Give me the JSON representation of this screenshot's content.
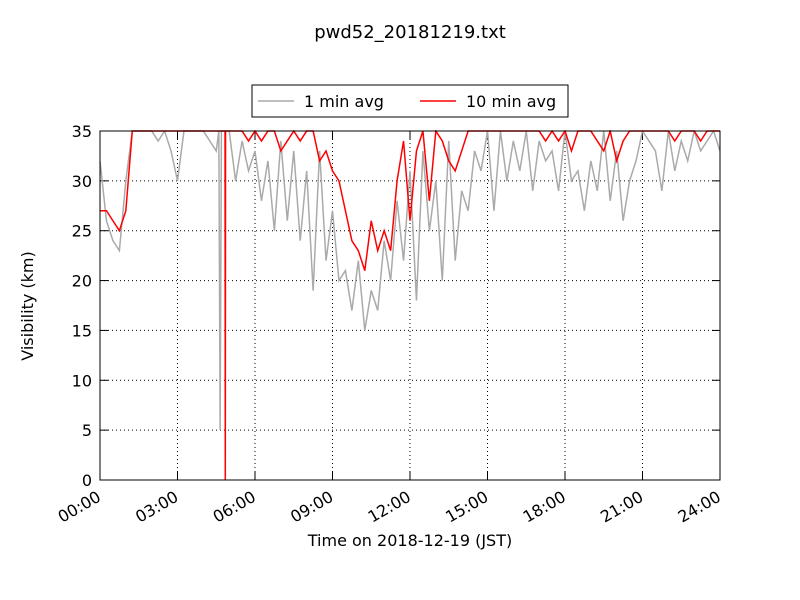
{
  "chart_data": {
    "type": "line",
    "title": "pwd52_20181219.txt",
    "x_label": "Time on 2018-12-19 (JST)",
    "y_label": "Visibility (km)",
    "x": [
      0,
      0.25,
      0.5,
      0.75,
      1,
      1.25,
      1.5,
      1.75,
      2,
      2.25,
      2.5,
      2.75,
      3,
      3.25,
      3.5,
      3.75,
      4,
      4.25,
      4.5,
      4.6,
      4.65,
      4.7,
      4.75,
      4.84,
      4.85,
      4.86,
      5,
      5.25,
      5.5,
      5.75,
      6,
      6.25,
      6.5,
      6.75,
      7,
      7.25,
      7.5,
      7.75,
      8,
      8.25,
      8.5,
      8.75,
      9,
      9.25,
      9.5,
      9.75,
      10,
      10.25,
      10.5,
      10.75,
      11,
      11.25,
      11.5,
      11.75,
      12,
      12.25,
      12.5,
      12.75,
      13,
      13.25,
      13.5,
      13.75,
      14,
      14.25,
      14.5,
      14.75,
      15,
      15.25,
      15.5,
      15.75,
      16,
      16.25,
      16.5,
      16.75,
      17,
      17.25,
      17.5,
      17.75,
      18,
      18.25,
      18.5,
      18.75,
      19,
      19.25,
      19.5,
      19.75,
      20,
      20.25,
      20.5,
      20.75,
      21,
      21.25,
      21.5,
      21.75,
      22,
      22.25,
      22.5,
      22.75,
      23,
      23.25,
      23.5,
      23.75,
      24
    ],
    "series": [
      {
        "name": "1 min avg",
        "color": "#aaaaaa",
        "values": [
          32,
          26,
          24,
          23,
          30,
          35,
          35,
          35,
          35,
          34,
          35,
          33,
          30,
          35,
          35,
          35,
          35,
          34,
          33,
          35,
          5,
          35,
          35,
          35,
          35,
          35,
          35,
          30,
          34,
          31,
          33,
          28,
          32,
          25,
          34,
          26,
          33,
          24,
          31,
          19,
          33,
          22,
          27,
          20,
          21,
          17,
          22,
          15,
          19,
          17,
          24,
          20,
          28,
          22,
          31,
          18,
          33,
          25,
          30,
          20,
          34,
          22,
          29,
          27,
          33,
          31,
          35,
          27,
          35,
          30,
          34,
          31,
          35,
          29,
          34,
          32,
          33,
          29,
          35,
          30,
          31,
          27,
          32,
          29,
          35,
          28,
          33,
          26,
          30,
          32,
          35,
          34,
          33,
          29,
          35,
          31,
          34,
          32,
          35,
          33,
          34,
          35,
          33
        ]
      },
      {
        "name": "10 min avg",
        "color": "#ff0000",
        "values": [
          27,
          27,
          26,
          25,
          27,
          35,
          35,
          35,
          35,
          35,
          35,
          35,
          35,
          35,
          35,
          35,
          35,
          35,
          35,
          35,
          35,
          35,
          35,
          35,
          0,
          35,
          35,
          35,
          35,
          34,
          35,
          34,
          35,
          35,
          33,
          34,
          35,
          34,
          35,
          35,
          32,
          33,
          31,
          30,
          27,
          24,
          23,
          21,
          26,
          23,
          25,
          23,
          30,
          34,
          26,
          33,
          35,
          28,
          35,
          34,
          32,
          31,
          33,
          35,
          35,
          35,
          35,
          35,
          35,
          35,
          35,
          35,
          35,
          35,
          35,
          34,
          35,
          34,
          35,
          33,
          35,
          35,
          35,
          34,
          33,
          35,
          32,
          34,
          35,
          35,
          35,
          35,
          35,
          35,
          35,
          34,
          35,
          35,
          35,
          34,
          35,
          35,
          35
        ]
      }
    ],
    "xlim": [
      0,
      24
    ],
    "xticks": [
      {
        "value": 0,
        "label": "00:00"
      },
      {
        "value": 3,
        "label": "03:00"
      },
      {
        "value": 6,
        "label": "06:00"
      },
      {
        "value": 9,
        "label": "09:00"
      },
      {
        "value": 12,
        "label": "12:00"
      },
      {
        "value": 15,
        "label": "15:00"
      },
      {
        "value": 18,
        "label": "18:00"
      },
      {
        "value": 21,
        "label": "21:00"
      },
      {
        "value": 24,
        "label": "24:00"
      }
    ],
    "ylim": [
      0,
      35
    ],
    "yticks": [
      0,
      5,
      10,
      15,
      20,
      25,
      30,
      35
    ],
    "grid": true,
    "legend": "top"
  }
}
